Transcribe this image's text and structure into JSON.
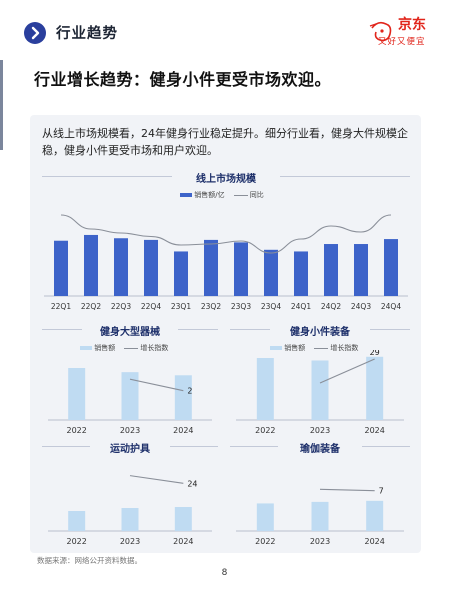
{
  "header": {
    "section_title": "行业趋势",
    "brand_name": "京东",
    "brand_slogan": "又好又便宜"
  },
  "headline": "行业增长趋势：健身小件更受市场欢迎。",
  "intro": "从线上市场规模看，24年健身行业稳定提升。细分行业看，健身大件规模企稳，健身小件更受市场和用户欢迎。",
  "colors": {
    "bar_main": "#3d63c9",
    "bar_light": "#bfdbf2",
    "line": "#8a8f99",
    "header_badge": "#2a3f9d",
    "brand": "#e1251b"
  },
  "chart_data": [
    {
      "type": "bar",
      "title": "线上市场规模",
      "categories": [
        "22Q1",
        "22Q2",
        "22Q3",
        "22Q4",
        "23Q1",
        "23Q2",
        "23Q3",
        "23Q4",
        "24Q1",
        "24Q2",
        "24Q3",
        "24Q4"
      ],
      "series": [
        {
          "name": "销售额/亿",
          "type": "bar",
          "values": [
            67,
            74,
            70,
            68,
            54,
            68,
            65,
            56,
            54,
            63,
            63,
            69
          ]
        },
        {
          "name": "同比",
          "type": "line",
          "values": [
            98,
            70,
            62,
            55,
            38,
            40,
            46,
            22,
            50,
            76,
            64,
            98
          ]
        }
      ],
      "legend_position": "top",
      "grid": false
    },
    {
      "type": "bar",
      "title": "健身大型器械",
      "categories": [
        "2022",
        "2023",
        "2024"
      ],
      "series": [
        {
          "name": "销售额",
          "type": "bar",
          "values": [
            100,
            92,
            86
          ]
        },
        {
          "name": "增长指数",
          "type": "line",
          "values": [
            null,
            20,
            2
          ]
        }
      ],
      "data_labels": {
        "2024": "2"
      },
      "legend_position": "top",
      "grid": false
    },
    {
      "type": "bar",
      "title": "健身小件装备",
      "categories": [
        "2022",
        "2023",
        "2024"
      ],
      "series": [
        {
          "name": "销售额",
          "type": "bar",
          "values": [
            100,
            96,
            102
          ]
        },
        {
          "name": "增长指数",
          "type": "line",
          "values": [
            null,
            5,
            29
          ]
        }
      ],
      "data_labels": {
        "2024": "29"
      },
      "legend_position": "top",
      "grid": false
    },
    {
      "type": "bar",
      "title": "运动护具",
      "categories": [
        "2022",
        "2023",
        "2024"
      ],
      "series": [
        {
          "name": "销售额",
          "type": "bar",
          "values": [
            40,
            46,
            48
          ]
        },
        {
          "name": "增长指数",
          "type": "line",
          "values": [
            null,
            48,
            24
          ]
        }
      ],
      "data_labels": {
        "2024": "24"
      },
      "grid": false
    },
    {
      "type": "bar",
      "title": "瑜伽装备",
      "categories": [
        "2022",
        "2023",
        "2024"
      ],
      "series": [
        {
          "name": "销售额",
          "type": "bar",
          "values": [
            53,
            56,
            58
          ]
        },
        {
          "name": "增长指数",
          "type": "line",
          "values": [
            null,
            11,
            7
          ]
        }
      ],
      "data_labels": {
        "2024": "7"
      },
      "grid": false
    }
  ],
  "footer": {
    "source": "数据来源：网络公开资料数据。",
    "page_number": "8"
  }
}
